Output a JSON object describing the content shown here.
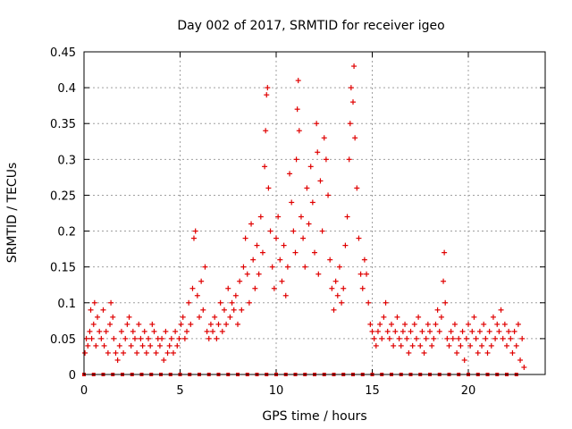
{
  "chart_data": {
    "type": "scatter",
    "title": "Day 002 of 2017, SRMTID for receiver igeo",
    "xlabel": "GPS time / hours",
    "ylabel": "SRMTID / TECUs",
    "xlim": [
      0,
      24
    ],
    "ylim": [
      0,
      0.45
    ],
    "xticks": [
      0,
      5,
      10,
      15,
      20
    ],
    "yticks": [
      0,
      0.05,
      0.1,
      0.15,
      0.2,
      0.25,
      0.3,
      0.35,
      0.4,
      0.45
    ],
    "ytick_labels": [
      "0",
      "0.05",
      "0.1",
      "0.15",
      "0.2",
      "0.25",
      "0.3",
      "0.35",
      "0.4",
      "0.45"
    ],
    "xtick_labels": [
      "0",
      "5",
      "10",
      "15",
      "20"
    ],
    "grid": true,
    "marker": "plus",
    "color": "#e00000",
    "series": [
      {
        "name": "SRMTID",
        "points": [
          [
            0.05,
            0.03
          ],
          [
            0.12,
            0.05
          ],
          [
            0.2,
            0.04
          ],
          [
            0.3,
            0.06
          ],
          [
            0.35,
            0.09
          ],
          [
            0.4,
            0.05
          ],
          [
            0.5,
            0.07
          ],
          [
            0.55,
            0.1
          ],
          [
            0.62,
            0.04
          ],
          [
            0.7,
            0.08
          ],
          [
            0.8,
            0.06
          ],
          [
            0.9,
            0.05
          ],
          [
            1.0,
            0.09
          ],
          [
            1.05,
            0.04
          ],
          [
            1.15,
            0.06
          ],
          [
            1.25,
            0.03
          ],
          [
            1.35,
            0.07
          ],
          [
            1.4,
            0.1
          ],
          [
            1.5,
            0.08
          ],
          [
            1.55,
            0.05
          ],
          [
            1.65,
            0.03
          ],
          [
            1.75,
            0.02
          ],
          [
            1.85,
            0.04
          ],
          [
            1.95,
            0.06
          ],
          [
            2.05,
            0.03
          ],
          [
            2.15,
            0.05
          ],
          [
            2.25,
            0.07
          ],
          [
            2.35,
            0.08
          ],
          [
            2.45,
            0.04
          ],
          [
            2.55,
            0.06
          ],
          [
            2.65,
            0.05
          ],
          [
            2.75,
            0.03
          ],
          [
            2.85,
            0.07
          ],
          [
            2.95,
            0.05
          ],
          [
            3.05,
            0.04
          ],
          [
            3.15,
            0.06
          ],
          [
            3.25,
            0.03
          ],
          [
            3.35,
            0.05
          ],
          [
            3.45,
            0.04
          ],
          [
            3.55,
            0.07
          ],
          [
            3.65,
            0.06
          ],
          [
            3.75,
            0.03
          ],
          [
            3.85,
            0.05
          ],
          [
            3.95,
            0.04
          ],
          [
            4.05,
            0.05
          ],
          [
            4.15,
            0.02
          ],
          [
            4.25,
            0.06
          ],
          [
            4.35,
            0.03
          ],
          [
            4.45,
            0.04
          ],
          [
            4.55,
            0.05
          ],
          [
            4.65,
            0.03
          ],
          [
            4.75,
            0.06
          ],
          [
            4.85,
            0.04
          ],
          [
            4.95,
            0.05
          ],
          [
            5.05,
            0.07
          ],
          [
            5.15,
            0.08
          ],
          [
            5.25,
            0.05
          ],
          [
            5.35,
            0.06
          ],
          [
            5.45,
            0.1
          ],
          [
            5.55,
            0.07
          ],
          [
            5.65,
            0.12
          ],
          [
            5.72,
            0.19
          ],
          [
            5.8,
            0.2
          ],
          [
            5.9,
            0.11
          ],
          [
            6.0,
            0.08
          ],
          [
            6.1,
            0.13
          ],
          [
            6.2,
            0.09
          ],
          [
            6.3,
            0.15
          ],
          [
            6.4,
            0.06
          ],
          [
            6.5,
            0.05
          ],
          [
            6.6,
            0.07
          ],
          [
            6.7,
            0.06
          ],
          [
            6.8,
            0.08
          ],
          [
            6.9,
            0.05
          ],
          [
            7.0,
            0.07
          ],
          [
            7.1,
            0.1
          ],
          [
            7.2,
            0.06
          ],
          [
            7.3,
            0.09
          ],
          [
            7.4,
            0.07
          ],
          [
            7.5,
            0.12
          ],
          [
            7.6,
            0.08
          ],
          [
            7.7,
            0.1
          ],
          [
            7.8,
            0.09
          ],
          [
            7.9,
            0.11
          ],
          [
            8.0,
            0.07
          ],
          [
            8.1,
            0.13
          ],
          [
            8.2,
            0.09
          ],
          [
            8.3,
            0.15
          ],
          [
            8.4,
            0.19
          ],
          [
            8.5,
            0.14
          ],
          [
            8.6,
            0.1
          ],
          [
            8.7,
            0.21
          ],
          [
            8.8,
            0.16
          ],
          [
            8.9,
            0.12
          ],
          [
            9.0,
            0.18
          ],
          [
            9.1,
            0.14
          ],
          [
            9.2,
            0.22
          ],
          [
            9.3,
            0.17
          ],
          [
            9.4,
            0.29
          ],
          [
            9.45,
            0.34
          ],
          [
            9.5,
            0.39
          ],
          [
            9.55,
            0.4
          ],
          [
            9.6,
            0.26
          ],
          [
            9.7,
            0.2
          ],
          [
            9.8,
            0.15
          ],
          [
            9.9,
            0.12
          ],
          [
            10.0,
            0.19
          ],
          [
            10.1,
            0.22
          ],
          [
            10.2,
            0.16
          ],
          [
            10.3,
            0.13
          ],
          [
            10.4,
            0.18
          ],
          [
            10.5,
            0.11
          ],
          [
            10.6,
            0.15
          ],
          [
            10.7,
            0.28
          ],
          [
            10.8,
            0.24
          ],
          [
            10.9,
            0.2
          ],
          [
            11.0,
            0.17
          ],
          [
            11.05,
            0.3
          ],
          [
            11.1,
            0.37
          ],
          [
            11.15,
            0.41
          ],
          [
            11.2,
            0.34
          ],
          [
            11.3,
            0.22
          ],
          [
            11.4,
            0.19
          ],
          [
            11.5,
            0.15
          ],
          [
            11.6,
            0.26
          ],
          [
            11.7,
            0.21
          ],
          [
            11.8,
            0.29
          ],
          [
            11.9,
            0.24
          ],
          [
            12.0,
            0.17
          ],
          [
            12.1,
            0.35
          ],
          [
            12.15,
            0.31
          ],
          [
            12.2,
            0.14
          ],
          [
            12.3,
            0.27
          ],
          [
            12.4,
            0.2
          ],
          [
            12.5,
            0.33
          ],
          [
            12.6,
            0.3
          ],
          [
            12.7,
            0.25
          ],
          [
            12.8,
            0.16
          ],
          [
            12.9,
            0.12
          ],
          [
            13.0,
            0.09
          ],
          [
            13.1,
            0.13
          ],
          [
            13.2,
            0.11
          ],
          [
            13.3,
            0.15
          ],
          [
            13.4,
            0.1
          ],
          [
            13.5,
            0.12
          ],
          [
            13.6,
            0.18
          ],
          [
            13.7,
            0.22
          ],
          [
            13.8,
            0.3
          ],
          [
            13.85,
            0.35
          ],
          [
            13.9,
            0.4
          ],
          [
            14.0,
            0.38
          ],
          [
            14.05,
            0.43
          ],
          [
            14.1,
            0.33
          ],
          [
            14.2,
            0.26
          ],
          [
            14.3,
            0.19
          ],
          [
            14.4,
            0.14
          ],
          [
            14.5,
            0.12
          ],
          [
            14.6,
            0.16
          ],
          [
            14.7,
            0.14
          ],
          [
            14.8,
            0.1
          ],
          [
            14.9,
            0.07
          ],
          [
            15.0,
            0.06
          ],
          [
            15.1,
            0.05
          ],
          [
            15.2,
            0.04
          ],
          [
            15.3,
            0.06
          ],
          [
            15.4,
            0.07
          ],
          [
            15.5,
            0.05
          ],
          [
            15.6,
            0.08
          ],
          [
            15.7,
            0.1
          ],
          [
            15.8,
            0.06
          ],
          [
            15.9,
            0.05
          ],
          [
            16.0,
            0.07
          ],
          [
            16.1,
            0.04
          ],
          [
            16.2,
            0.06
          ],
          [
            16.3,
            0.08
          ],
          [
            16.4,
            0.05
          ],
          [
            16.5,
            0.04
          ],
          [
            16.6,
            0.06
          ],
          [
            16.7,
            0.07
          ],
          [
            16.8,
            0.05
          ],
          [
            16.9,
            0.03
          ],
          [
            17.0,
            0.06
          ],
          [
            17.1,
            0.04
          ],
          [
            17.2,
            0.07
          ],
          [
            17.3,
            0.05
          ],
          [
            17.4,
            0.08
          ],
          [
            17.5,
            0.04
          ],
          [
            17.6,
            0.06
          ],
          [
            17.7,
            0.03
          ],
          [
            17.8,
            0.05
          ],
          [
            17.9,
            0.07
          ],
          [
            18.0,
            0.06
          ],
          [
            18.1,
            0.04
          ],
          [
            18.2,
            0.05
          ],
          [
            18.3,
            0.07
          ],
          [
            18.4,
            0.09
          ],
          [
            18.5,
            0.06
          ],
          [
            18.6,
            0.08
          ],
          [
            18.7,
            0.13
          ],
          [
            18.75,
            0.17
          ],
          [
            18.8,
            0.1
          ],
          [
            18.9,
            0.05
          ],
          [
            19.0,
            0.04
          ],
          [
            19.1,
            0.06
          ],
          [
            19.2,
            0.05
          ],
          [
            19.3,
            0.07
          ],
          [
            19.4,
            0.03
          ],
          [
            19.5,
            0.05
          ],
          [
            19.6,
            0.04
          ],
          [
            19.7,
            0.06
          ],
          [
            19.8,
            0.02
          ],
          [
            19.9,
            0.05
          ],
          [
            20.0,
            0.07
          ],
          [
            20.1,
            0.04
          ],
          [
            20.2,
            0.06
          ],
          [
            20.3,
            0.08
          ],
          [
            20.4,
            0.05
          ],
          [
            20.5,
            0.03
          ],
          [
            20.6,
            0.06
          ],
          [
            20.7,
            0.04
          ],
          [
            20.8,
            0.07
          ],
          [
            20.9,
            0.05
          ],
          [
            21.0,
            0.03
          ],
          [
            21.1,
            0.06
          ],
          [
            21.2,
            0.04
          ],
          [
            21.3,
            0.08
          ],
          [
            21.4,
            0.05
          ],
          [
            21.5,
            0.07
          ],
          [
            21.6,
            0.06
          ],
          [
            21.7,
            0.09
          ],
          [
            21.8,
            0.05
          ],
          [
            21.9,
            0.07
          ],
          [
            22.0,
            0.04
          ],
          [
            22.1,
            0.06
          ],
          [
            22.2,
            0.05
          ],
          [
            22.3,
            0.03
          ],
          [
            22.4,
            0.06
          ],
          [
            22.5,
            0.04
          ],
          [
            22.6,
            0.07
          ],
          [
            22.7,
            0.02
          ],
          [
            22.8,
            0.05
          ],
          [
            22.9,
            0.01
          ]
        ]
      }
    ],
    "zero_points": [
      0,
      0.5,
      1,
      1.5,
      2,
      2.5,
      3,
      3.5,
      4,
      4.5,
      5,
      5.5,
      6,
      6.5,
      7,
      7.5,
      8,
      8.5,
      9,
      9.5,
      10,
      10.5,
      11,
      11.5,
      12,
      12.5,
      13,
      13.5,
      14,
      14.5,
      15,
      15.5,
      16,
      16.5,
      17,
      17.5,
      18,
      18.5,
      19,
      19.5,
      20,
      20.5,
      21,
      21.5,
      22,
      22.5
    ]
  }
}
